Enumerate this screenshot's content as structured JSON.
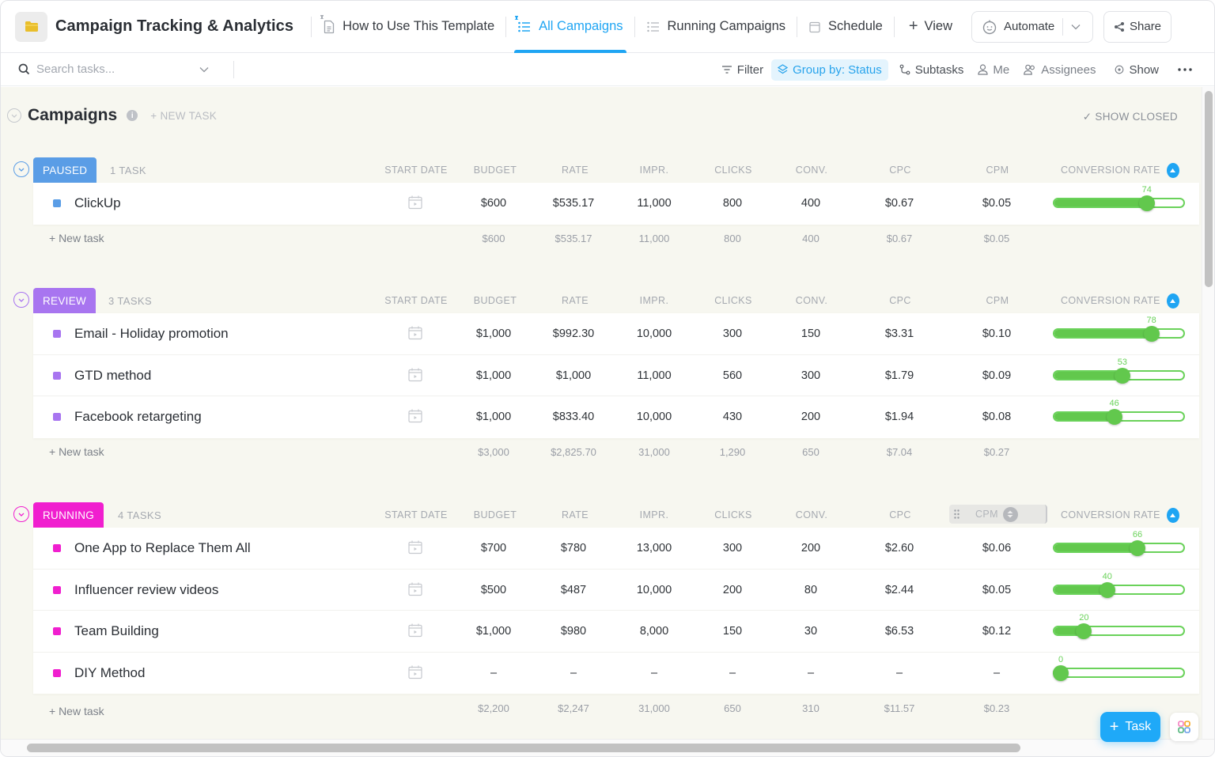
{
  "header": {
    "title": "Campaign Tracking & Analytics",
    "tabs": [
      {
        "label": "How to Use This Template",
        "icon": "doc-icon",
        "pinned": true,
        "active": false
      },
      {
        "label": "All Campaigns",
        "icon": "list-icon",
        "pinned": true,
        "active": true
      },
      {
        "label": "Running Campaigns",
        "icon": "list-icon",
        "pinned": false,
        "active": false
      },
      {
        "label": "Schedule",
        "icon": "calendar-icon",
        "pinned": false,
        "active": false
      }
    ],
    "add_view_label": "View",
    "automate_label": "Automate",
    "share_label": "Share"
  },
  "toolbar": {
    "search_placeholder": "Search tasks...",
    "filter_label": "Filter",
    "group_by_label": "Group by: Status",
    "subtasks_label": "Subtasks",
    "me_label": "Me",
    "assignees_label": "Assignees",
    "show_label": "Show"
  },
  "list": {
    "title": "Campaigns",
    "new_task_label": "+ NEW TASK",
    "show_closed_label": "SHOW CLOSED",
    "columns": {
      "start_date": "START DATE",
      "budget": "BUDGET",
      "rate": "RATE",
      "impr": "IMPR.",
      "clicks": "CLICKS",
      "conv": "CONV.",
      "cpc": "CPC",
      "cpm": "CPM",
      "conversion_rate": "CONVERSION RATE"
    },
    "new_task_row_label": "+ New task"
  },
  "groups": [
    {
      "status": "PAUSED",
      "color": "#5a9de6",
      "count_label": "1 TASK",
      "tasks": [
        {
          "name": "ClickUp",
          "budget": "$600",
          "rate": "$535.17",
          "impr": "11,000",
          "clicks": "800",
          "conv": "400",
          "cpc": "$0.67",
          "cpm": "$0.05",
          "conversion_rate": 74
        }
      ],
      "totals": {
        "budget": "$600",
        "rate": "$535.17",
        "impr": "11,000",
        "clicks": "800",
        "conv": "400",
        "cpc": "$0.67",
        "cpm": "$0.05"
      }
    },
    {
      "status": "REVIEW",
      "color": "#a875f0",
      "count_label": "3 TASKS",
      "tasks": [
        {
          "name": "Email - Holiday promotion",
          "budget": "$1,000",
          "rate": "$992.30",
          "impr": "10,000",
          "clicks": "300",
          "conv": "150",
          "cpc": "$3.31",
          "cpm": "$0.10",
          "conversion_rate": 78
        },
        {
          "name": "GTD method",
          "budget": "$1,000",
          "rate": "$1,000",
          "impr": "11,000",
          "clicks": "560",
          "conv": "300",
          "cpc": "$1.79",
          "cpm": "$0.09",
          "conversion_rate": 53
        },
        {
          "name": "Facebook retargeting",
          "budget": "$1,000",
          "rate": "$833.40",
          "impr": "10,000",
          "clicks": "430",
          "conv": "200",
          "cpc": "$1.94",
          "cpm": "$0.08",
          "conversion_rate": 46
        }
      ],
      "totals": {
        "budget": "$3,000",
        "rate": "$2,825.70",
        "impr": "31,000",
        "clicks": "1,290",
        "conv": "650",
        "cpc": "$7.04",
        "cpm": "$0.27"
      }
    },
    {
      "status": "RUNNING",
      "color": "#f01fcf",
      "count_label": "4 TASKS",
      "tasks": [
        {
          "name": "One App to Replace Them All",
          "budget": "$700",
          "rate": "$780",
          "impr": "13,000",
          "clicks": "300",
          "conv": "200",
          "cpc": "$2.60",
          "cpm": "$0.06",
          "conversion_rate": 66
        },
        {
          "name": "Influencer review videos",
          "budget": "$500",
          "rate": "$487",
          "impr": "10,000",
          "clicks": "200",
          "conv": "80",
          "cpc": "$2.44",
          "cpm": "$0.05",
          "conversion_rate": 40
        },
        {
          "name": "Team Building",
          "budget": "$1,000",
          "rate": "$980",
          "impr": "8,000",
          "clicks": "150",
          "conv": "30",
          "cpc": "$6.53",
          "cpm": "$0.12",
          "conversion_rate": 20
        },
        {
          "name": "DIY Method",
          "budget": "–",
          "rate": "–",
          "impr": "–",
          "clicks": "–",
          "conv": "–",
          "cpc": "–",
          "cpm": "–",
          "conversion_rate": 0
        }
      ],
      "totals": {
        "budget": "$2,200",
        "rate": "$2,247",
        "impr": "31,000",
        "clicks": "650",
        "conv": "310",
        "cpc": "$11.57",
        "cpm": "$0.23"
      }
    }
  ],
  "fab": {
    "label": "Task"
  },
  "colors": {
    "accent": "#1fa5f3",
    "slider_green": "#62c84d",
    "background": "#f7f7f0"
  }
}
